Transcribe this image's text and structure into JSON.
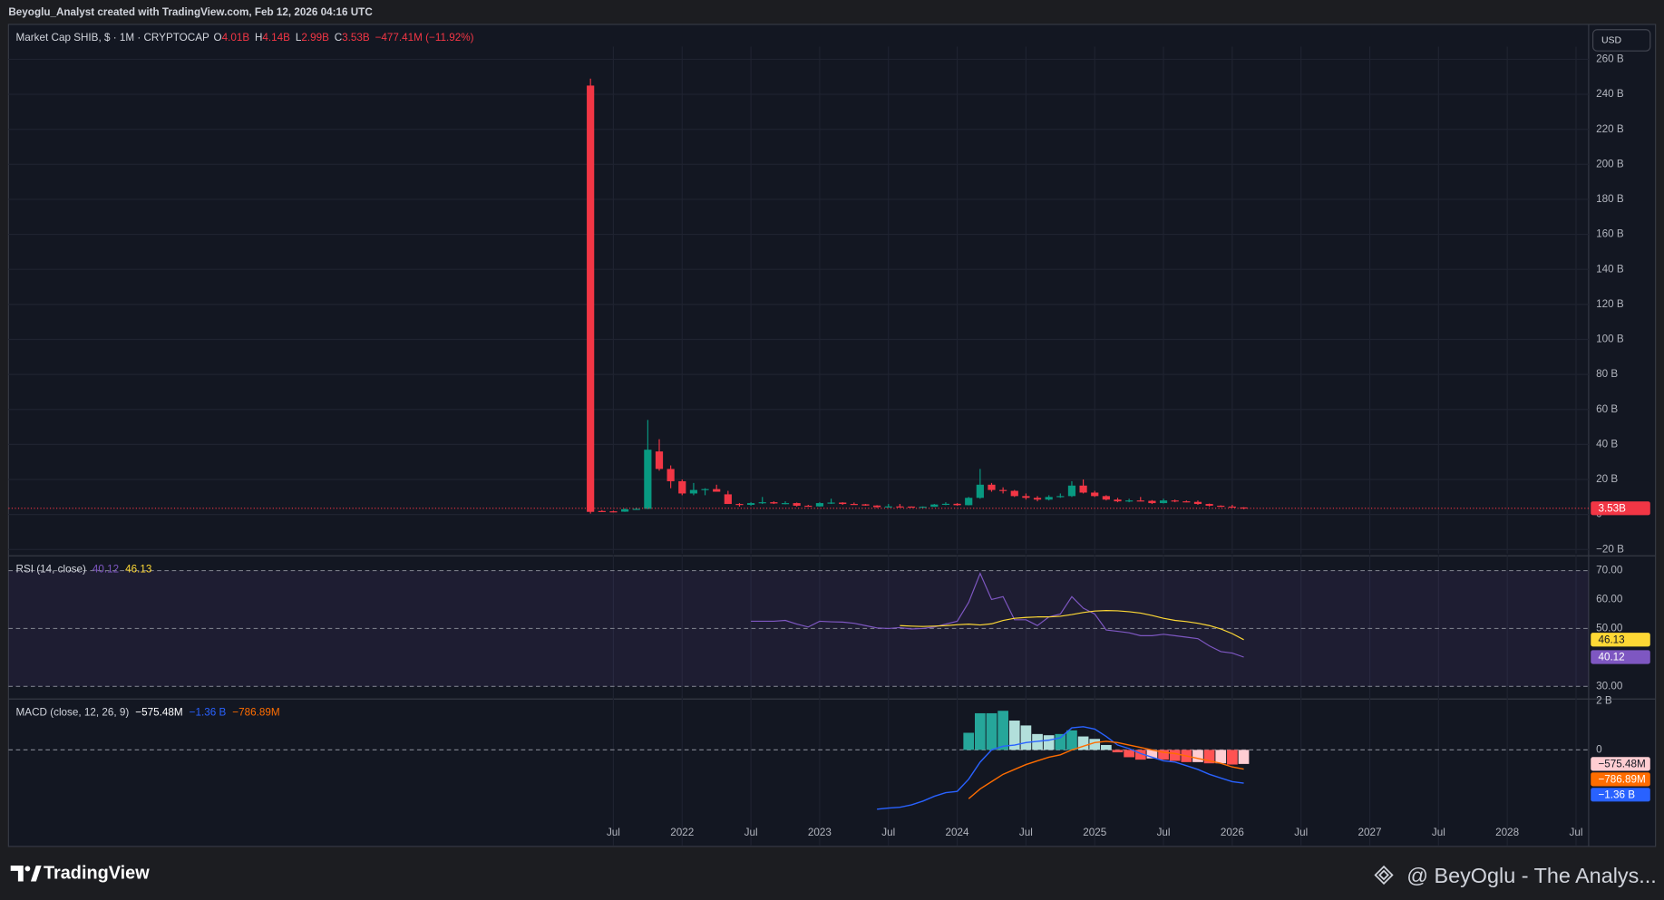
{
  "header": {
    "caption": "Beyoglu_Analyst created with TradingView.com, Feb 12, 2026 04:16 UTC"
  },
  "currency_button": "USD",
  "footer": {
    "brand": "TradingView",
    "watermark": "@ BeyOglu - The Analys..."
  },
  "chart_data": [
    {
      "type": "candlestick",
      "title": "Market Cap SHIB, $ · 1M · CRYPTOCAP",
      "legend": [
        {
          "key": "O",
          "value": "4.01B"
        },
        {
          "key": "H",
          "value": "4.14B"
        },
        {
          "key": "L",
          "value": "2.99B"
        },
        {
          "key": "C",
          "value": "3.53B"
        }
      ],
      "change": "−477.41M (−11.92%)",
      "open": [
        245,
        2,
        1.8,
        1.6,
        3,
        3.2,
        36,
        26,
        19,
        12,
        14,
        14.5,
        11.5,
        6,
        5.5,
        6.5,
        7,
        6.3,
        6.5,
        5,
        4.6,
        6.5,
        6.8,
        6,
        5.8,
        5.1,
        4.2,
        4.6,
        4.5,
        4.3,
        4.4,
        5.7,
        6.1,
        5.3,
        9.5,
        17,
        14,
        13.5,
        10.5,
        9.5,
        8.5,
        10,
        10.5,
        16.5,
        12.5,
        10.5,
        8.5,
        7.5,
        8,
        7.8,
        6.5,
        8,
        7.5,
        7.2,
        6,
        5,
        4.5,
        4.01
      ],
      "high": [
        249,
        2.5,
        2.2,
        3.5,
        4,
        54,
        43,
        28,
        20,
        18,
        15,
        17,
        13.5,
        6.5,
        7,
        10,
        7.5,
        7.5,
        6.8,
        5.5,
        7,
        9,
        7,
        6.8,
        6,
        5.3,
        6,
        6,
        4.6,
        4.6,
        6,
        7,
        6.5,
        10,
        26,
        18,
        15.5,
        14,
        12,
        10.5,
        11,
        12,
        19,
        20,
        13.5,
        11,
        9.5,
        9,
        10,
        8.2,
        9,
        8.5,
        8,
        8,
        6.2,
        5.2,
        5.5,
        4.14
      ],
      "low": [
        0.5,
        1.5,
        1.3,
        1.5,
        2.8,
        3,
        25,
        15,
        11,
        11,
        11,
        13,
        6,
        4.5,
        5,
        6,
        6,
        5.8,
        4.5,
        4.5,
        4.5,
        6,
        5.5,
        5.5,
        5,
        3.8,
        4.1,
        4.2,
        4.2,
        4.1,
        4.3,
        5.3,
        5,
        5.2,
        9,
        13,
        12,
        10,
        8.5,
        7.5,
        8,
        9.5,
        10,
        12,
        10,
        8,
        7,
        7,
        7.5,
        6,
        6.3,
        7,
        7,
        5.5,
        4.5,
        4.2,
        4,
        2.99
      ],
      "close": [
        1.5,
        1.8,
        1.6,
        3,
        3.2,
        37,
        26,
        19,
        12,
        14,
        14.5,
        13,
        6,
        5.5,
        6.5,
        7,
        6.3,
        6.5,
        5,
        4.6,
        6.5,
        6.8,
        6,
        5.8,
        5.1,
        4.2,
        4.6,
        4.5,
        4.3,
        4.4,
        5.7,
        6.1,
        5.3,
        9.5,
        17,
        14,
        13.5,
        10.5,
        9.5,
        8.5,
        10,
        10.5,
        16.5,
        12.5,
        10.5,
        8.5,
        7.5,
        8,
        7.8,
        6.5,
        8,
        7.5,
        7.2,
        6,
        5,
        4.5,
        4.01,
        3.53
      ],
      "last_value_label": "3.53B",
      "up_color": "#089981",
      "down_color": "#f23645",
      "xlim": [
        -50.6,
        87.1
      ],
      "ylim": [
        -22.4,
        264.8
      ],
      "yticks": [
        {
          "value": -20,
          "label": "−20 B"
        },
        0,
        {
          "value": 20,
          "label": "20 B"
        },
        {
          "value": 40,
          "label": "40 B"
        },
        {
          "value": 60,
          "label": "60 B"
        },
        {
          "value": 80,
          "label": "80 B"
        },
        {
          "value": 100,
          "label": "100 B"
        },
        {
          "value": 120,
          "label": "120 B"
        },
        {
          "value": 140,
          "label": "140 B"
        },
        {
          "value": 160,
          "label": "160 B"
        },
        {
          "value": 180,
          "label": "180 B"
        },
        {
          "value": 200,
          "label": "200 B"
        },
        {
          "value": 220,
          "label": "220 B"
        },
        {
          "value": 240,
          "label": "240 B"
        },
        {
          "value": 260,
          "label": "260 B"
        }
      ],
      "grid": true
    },
    {
      "type": "line",
      "title": "RSI (14, close)",
      "series": [
        {
          "color": "#7e57c2",
          "value_label": "40.12",
          "values": [
            null,
            null,
            null,
            null,
            null,
            null,
            null,
            null,
            null,
            null,
            null,
            null,
            null,
            null,
            52.5,
            52.5,
            52.5,
            52.8,
            51.5,
            50.5,
            52.5,
            52.3,
            52.2,
            51.8,
            51,
            50.2,
            50,
            50.3,
            49.8,
            50,
            50.5,
            51.5,
            52.5,
            59,
            69,
            60,
            61,
            53,
            53,
            51,
            54,
            55,
            61,
            57,
            55,
            49.5,
            49,
            48.5,
            47.5,
            47.5,
            48,
            47.5,
            47,
            46.5,
            44,
            42,
            41.5,
            40.12
          ]
        },
        {
          "color": "#fdd835",
          "value_label": "46.13",
          "values": [
            null,
            null,
            null,
            null,
            null,
            null,
            null,
            null,
            null,
            null,
            null,
            null,
            null,
            null,
            null,
            null,
            null,
            null,
            null,
            null,
            null,
            null,
            null,
            null,
            null,
            null,
            null,
            51,
            50.8,
            50.7,
            50.8,
            51,
            51.3,
            51.5,
            51.2,
            51.6,
            52.8,
            53.5,
            53.8,
            54,
            54,
            54.2,
            54.8,
            55.5,
            56,
            56.2,
            56.1,
            55.8,
            55.3,
            54.5,
            53.5,
            52.8,
            52.4,
            51.8,
            51,
            49.8,
            48.2,
            46.13
          ]
        }
      ],
      "bands": [
        70,
        50,
        30
      ],
      "band_color": "#7e57c2",
      "xlim": [
        -50.6,
        87.1
      ],
      "ylim": [
        26,
        74
      ],
      "yticks": [
        {
          "value": 70,
          "label": "70.00"
        },
        {
          "value": 60,
          "label": "60.00"
        },
        {
          "value": 50,
          "label": "50.00"
        },
        {
          "value": 30,
          "label": "30.00"
        }
      ]
    },
    {
      "type": "macd",
      "title": "MACD (close, 12, 26, 9)",
      "histogram": {
        "value_label": "−575.48M",
        "colors": [
          "#26a69a",
          "#b2dfdb",
          "#ff5252",
          "#ffcdd2"
        ],
        "values": [
          null,
          null,
          null,
          null,
          null,
          null,
          null,
          null,
          null,
          null,
          null,
          null,
          null,
          null,
          null,
          null,
          null,
          null,
          null,
          null,
          null,
          null,
          null,
          null,
          null,
          null,
          null,
          null,
          null,
          null,
          null,
          null,
          null,
          0.7,
          1.5,
          1.5,
          1.6,
          1.2,
          1.0,
          0.65,
          0.6,
          0.65,
          0.8,
          0.55,
          0.45,
          0.2,
          -0.1,
          -0.3,
          -0.4,
          -0.35,
          -0.4,
          -0.45,
          -0.5,
          -0.5,
          -0.55,
          -0.55,
          -0.6,
          -0.57548
        ]
      },
      "series": [
        {
          "color": "#2962ff",
          "value_label": "−1.36 B",
          "values": [
            null,
            null,
            null,
            null,
            null,
            null,
            null,
            null,
            null,
            null,
            null,
            null,
            null,
            null,
            null,
            null,
            null,
            null,
            null,
            null,
            null,
            null,
            null,
            null,
            null,
            -2.43,
            -2.38,
            -2.35,
            -2.25,
            -2.1,
            -1.9,
            -1.75,
            -1.7,
            -1.2,
            -0.5,
            0,
            0.15,
            0.2,
            0.3,
            0.35,
            0.4,
            0.5,
            0.9,
            0.95,
            0.85,
            0.55,
            0.2,
            0.05,
            -0.15,
            -0.3,
            -0.45,
            -0.5,
            -0.65,
            -0.8,
            -1.0,
            -1.15,
            -1.3,
            -1.36
          ]
        },
        {
          "color": "#ff6d00",
          "value_label": "−786.89M",
          "values": [
            null,
            null,
            null,
            null,
            null,
            null,
            null,
            null,
            null,
            null,
            null,
            null,
            null,
            null,
            null,
            null,
            null,
            null,
            null,
            null,
            null,
            null,
            null,
            null,
            null,
            null,
            null,
            null,
            null,
            null,
            null,
            null,
            null,
            -2.0,
            -1.6,
            -1.3,
            -1.0,
            -0.8,
            -0.6,
            -0.45,
            -0.3,
            -0.2,
            0,
            0.15,
            0.3,
            0.35,
            0.3,
            0.2,
            0.1,
            0.0,
            -0.1,
            -0.15,
            -0.25,
            -0.35,
            -0.45,
            -0.55,
            -0.7,
            -0.78689
          ]
        }
      ],
      "xlim": [
        -50.6,
        87.1
      ],
      "ylim": [
        -3.91,
        2.04
      ],
      "yticks": [
        {
          "value": 2,
          "label": "2 B"
        },
        0
      ],
      "xticks": [
        {
          "value": 2,
          "label": "Jul"
        },
        {
          "value": 8,
          "label": "2022"
        },
        {
          "value": 14,
          "label": "Jul"
        },
        {
          "value": 20,
          "label": "2023"
        },
        {
          "value": 26,
          "label": "Jul"
        },
        {
          "value": 32,
          "label": "2024"
        },
        {
          "value": 38,
          "label": "Jul"
        },
        {
          "value": 44,
          "label": "2025"
        },
        {
          "value": 50,
          "label": "Jul"
        },
        {
          "value": 56,
          "label": "2026"
        },
        {
          "value": 62,
          "label": "Jul"
        },
        {
          "value": 68,
          "label": "2027"
        },
        {
          "value": 74,
          "label": "Jul"
        },
        {
          "value": 80,
          "label": "2028"
        },
        {
          "value": 86,
          "label": "Jul"
        }
      ]
    }
  ]
}
